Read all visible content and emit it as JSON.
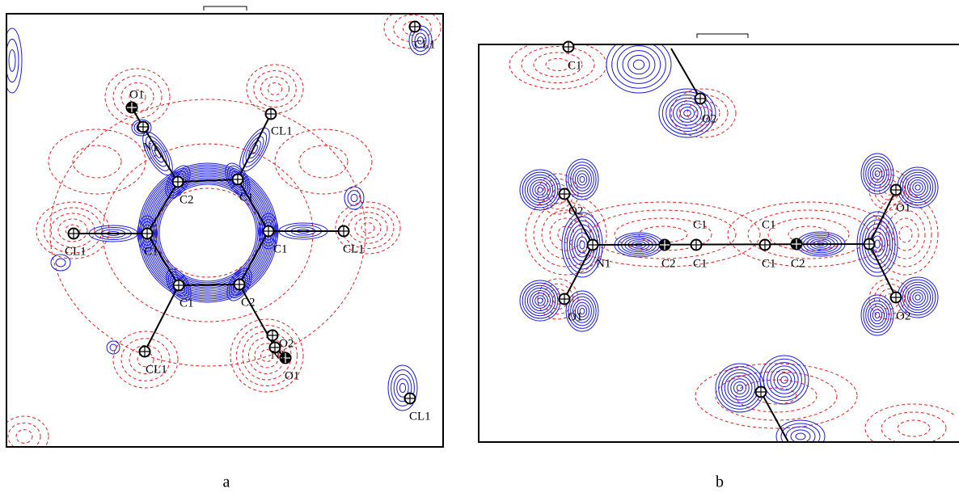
{
  "panels": [
    {
      "label": "a",
      "atom_labels": [
        "O1",
        "N1",
        "CL1",
        "C2",
        "C1",
        "C1",
        "C1",
        "CL1",
        "CL1",
        "C1",
        "C2",
        "O2",
        "N1",
        "O1",
        "CL1",
        "CL1",
        "CL1"
      ]
    },
    {
      "label": "b",
      "atom_labels": [
        "C1",
        "O2",
        "O2",
        "N1",
        "O1",
        "C2",
        "C1",
        "C1",
        "C1",
        "C1",
        "C2",
        "O1",
        "O2"
      ]
    }
  ]
}
